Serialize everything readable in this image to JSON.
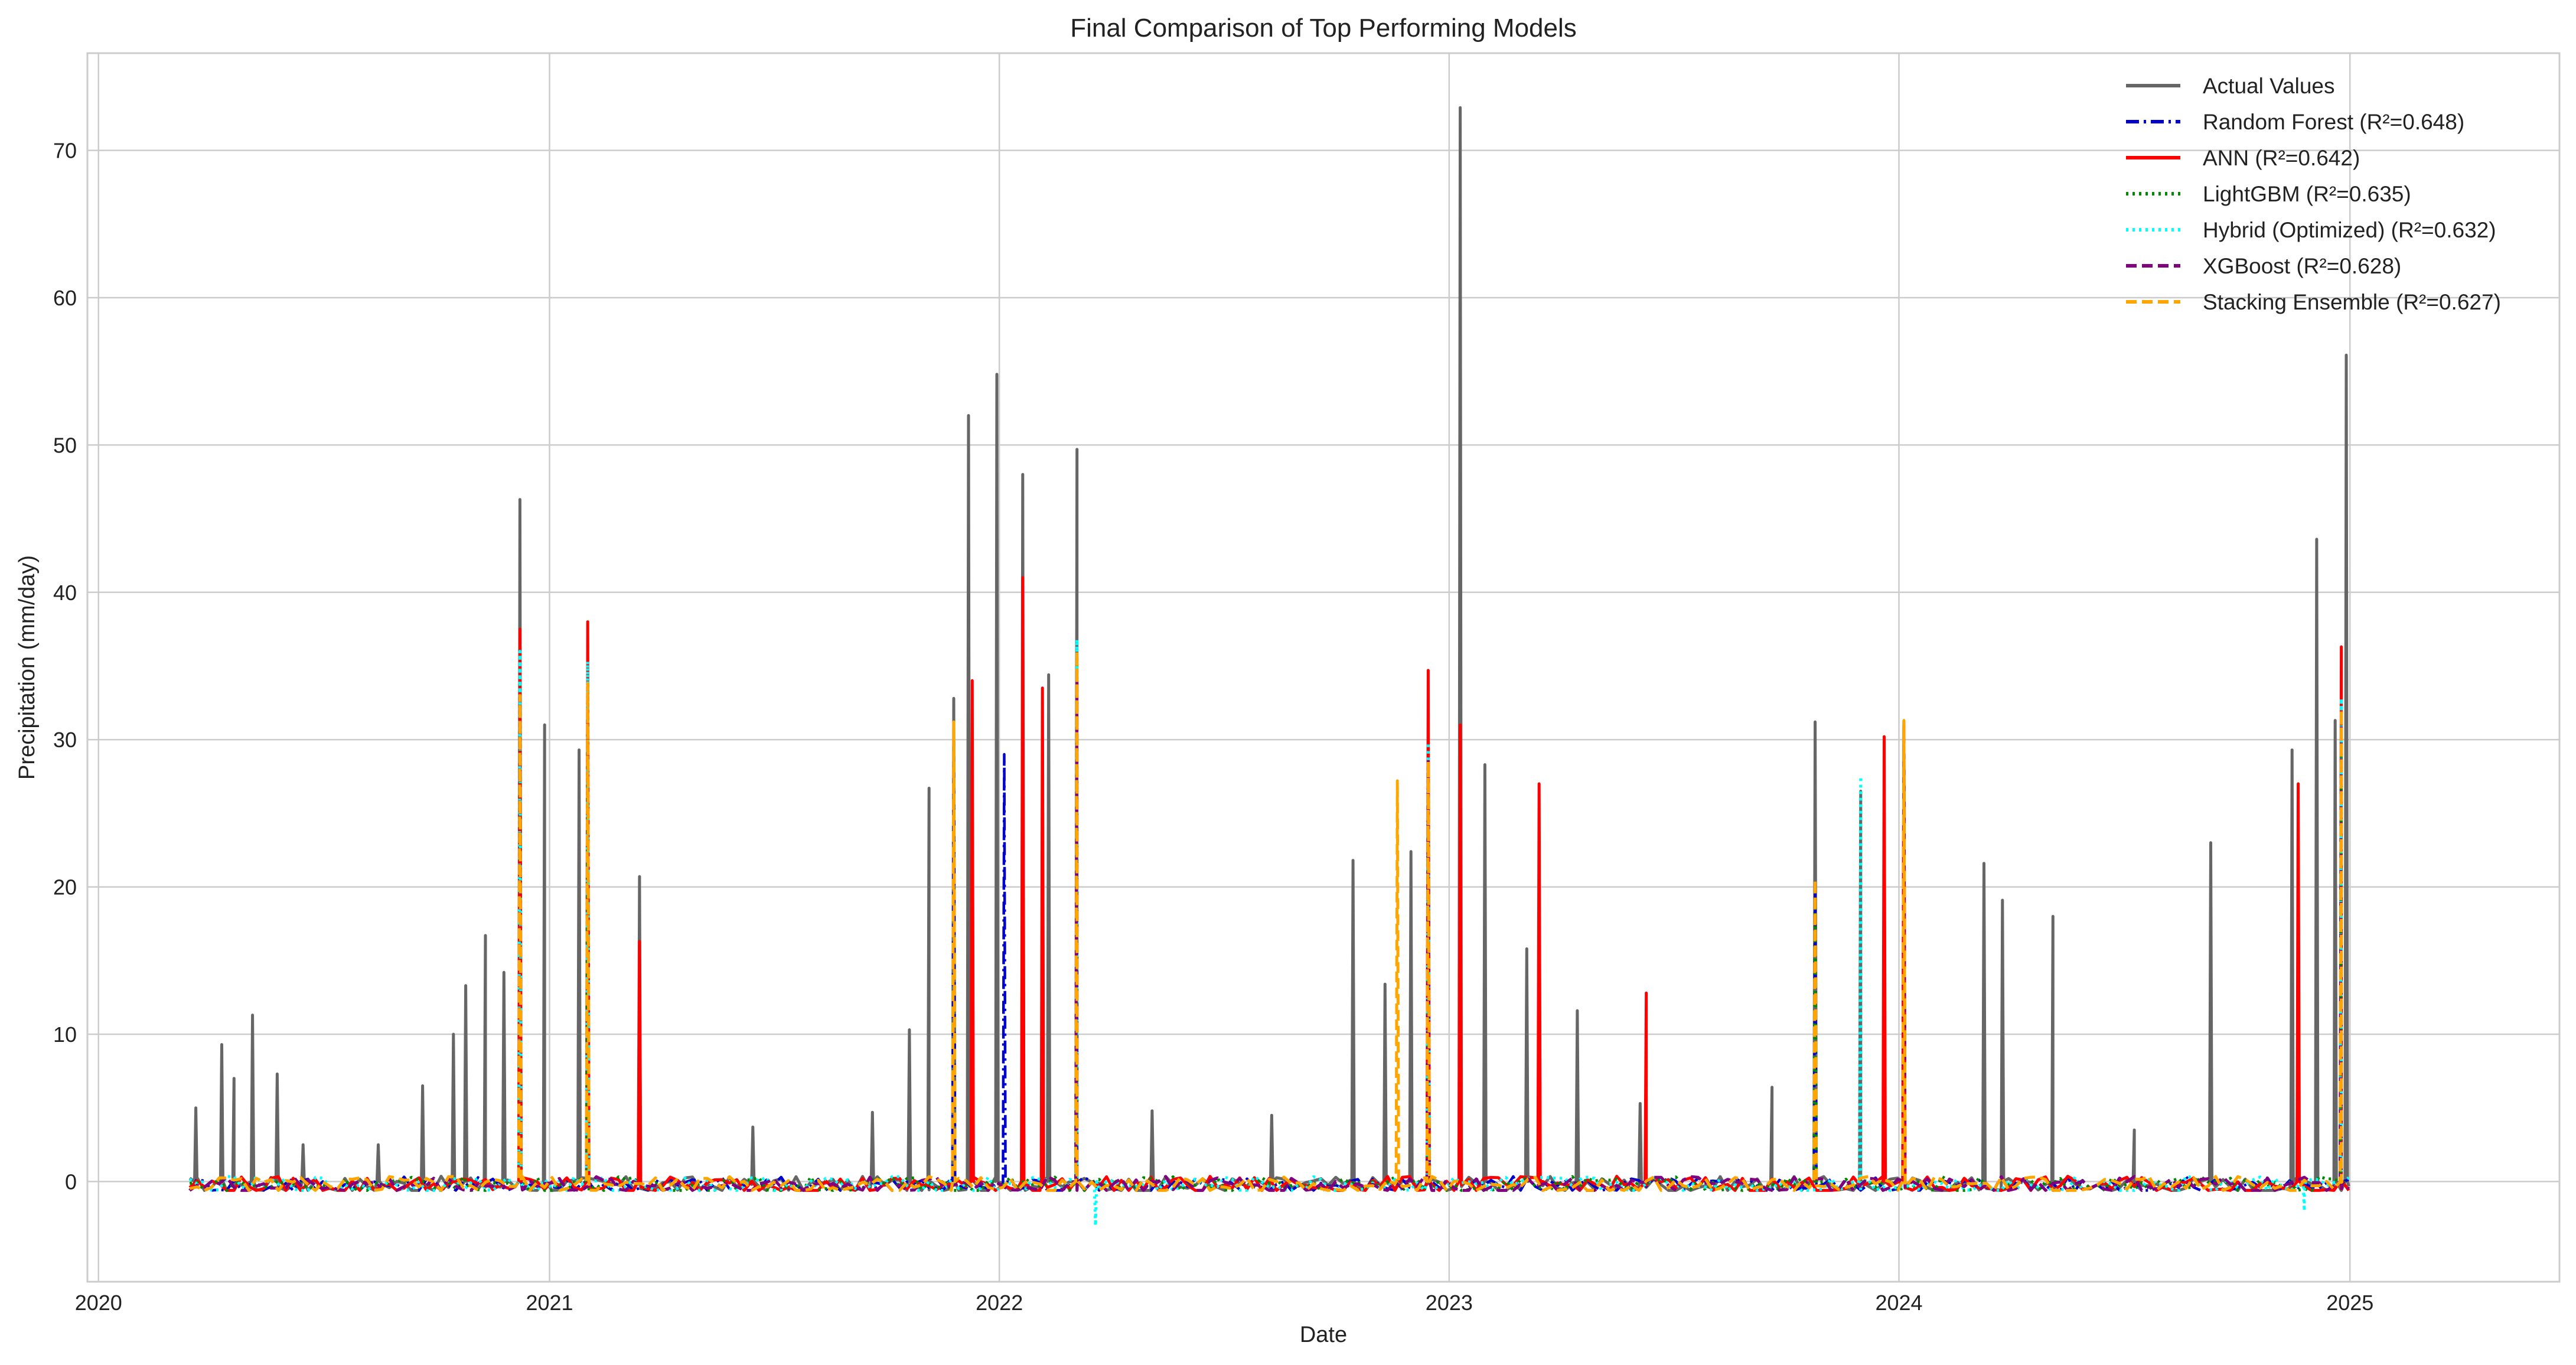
{
  "chart_data": {
    "type": "line",
    "title": "Final Comparison of Top Performing Models",
    "xlabel": "Date",
    "ylabel": "Precipitation (mm/day)",
    "x_ticks": [
      "2020",
      "2021",
      "2022",
      "2023",
      "2024",
      "2025"
    ],
    "y_ticks": [
      0,
      10,
      20,
      30,
      40,
      50,
      60,
      70
    ],
    "xlim": [
      "2019-12-23",
      "2025-06-20"
    ],
    "ylim": [
      -6.8,
      76.6
    ],
    "grid": true,
    "legend_position": "top-right",
    "series": [
      {
        "name": "Actual Values",
        "color": "#666666",
        "style": "solid",
        "points": [
          [
            "2020-03-20",
            5
          ],
          [
            "2020-04-10",
            9.3
          ],
          [
            "2020-04-20",
            7
          ],
          [
            "2020-05-05",
            11.3
          ],
          [
            "2020-05-25",
            7.3
          ],
          [
            "2020-06-15",
            2.5
          ],
          [
            "2020-08-15",
            2.5
          ],
          [
            "2020-09-20",
            6.5
          ],
          [
            "2020-10-15",
            10
          ],
          [
            "2020-10-25",
            13.3
          ],
          [
            "2020-11-10",
            16.7
          ],
          [
            "2020-11-25",
            14.2
          ],
          [
            "2020-12-08",
            46.3
          ],
          [
            "2020-12-28",
            31
          ],
          [
            "2021-01-25",
            29.3
          ],
          [
            "2021-03-15",
            20.7
          ],
          [
            "2021-06-15",
            3.7
          ],
          [
            "2021-09-20",
            4.7
          ],
          [
            "2021-10-20",
            10.3
          ],
          [
            "2021-11-05",
            26.7
          ],
          [
            "2021-11-25",
            32.8
          ],
          [
            "2021-12-07",
            52
          ],
          [
            "2021-12-30",
            54.8
          ],
          [
            "2022-01-20",
            48
          ],
          [
            "2022-02-10",
            34.4
          ],
          [
            "2022-03-05",
            49.7
          ],
          [
            "2022-05-05",
            4.8
          ],
          [
            "2022-08-10",
            4.5
          ],
          [
            "2022-10-15",
            21.8
          ],
          [
            "2022-11-10",
            13.4
          ],
          [
            "2022-12-01",
            22.4
          ],
          [
            "2023-01-10",
            72.9
          ],
          [
            "2023-01-30",
            28.3
          ],
          [
            "2023-03-05",
            15.8
          ],
          [
            "2023-04-15",
            11.6
          ],
          [
            "2023-06-05",
            5.3
          ],
          [
            "2023-09-20",
            6.4
          ],
          [
            "2023-10-25",
            31.2
          ],
          [
            "2023-12-01",
            26.5
          ],
          [
            "2024-01-05",
            31.2
          ],
          [
            "2024-03-10",
            21.6
          ],
          [
            "2024-03-25",
            19.1
          ],
          [
            "2024-05-05",
            18
          ],
          [
            "2024-07-10",
            3.5
          ],
          [
            "2024-09-10",
            23
          ],
          [
            "2024-11-15",
            29.3
          ],
          [
            "2024-12-05",
            43.6
          ],
          [
            "2024-12-20",
            31.3
          ],
          [
            "2024-12-29",
            56.1
          ]
        ]
      },
      {
        "name": "Random Forest (R²=0.648)",
        "color": "#0000cc",
        "style": "dashdot",
        "points": [
          [
            "2020-12-08",
            36
          ],
          [
            "2021-02-01",
            34
          ],
          [
            "2021-11-25",
            30
          ],
          [
            "2022-01-05",
            29
          ],
          [
            "2022-03-05",
            35
          ],
          [
            "2022-12-15",
            29
          ],
          [
            "2023-01-10",
            27
          ],
          [
            "2023-10-25",
            20
          ],
          [
            "2024-01-05",
            30
          ],
          [
            "2024-12-25",
            33
          ]
        ]
      },
      {
        "name": "ANN (R²=0.642)",
        "color": "#ff0000",
        "style": "solid",
        "points": [
          [
            "2020-12-08",
            37.5
          ],
          [
            "2021-02-01",
            38
          ],
          [
            "2021-03-15",
            16.3
          ],
          [
            "2021-12-10",
            34
          ],
          [
            "2022-01-20",
            41
          ],
          [
            "2022-02-05",
            33.5
          ],
          [
            "2022-12-15",
            34.7
          ],
          [
            "2023-01-10",
            31
          ],
          [
            "2023-03-15",
            27
          ],
          [
            "2023-06-10",
            12.8
          ],
          [
            "2023-12-20",
            30.2
          ],
          [
            "2024-01-05",
            31
          ],
          [
            "2024-11-20",
            27
          ],
          [
            "2024-12-25",
            36.3
          ]
        ]
      },
      {
        "name": "LightGBM (R²=0.635)",
        "color": "#008800",
        "style": "dotted",
        "points": [
          [
            "2020-12-08",
            34
          ],
          [
            "2021-02-01",
            33
          ],
          [
            "2022-03-05",
            35.5
          ],
          [
            "2022-12-15",
            28
          ],
          [
            "2023-10-25",
            19
          ],
          [
            "2024-12-25",
            30
          ]
        ]
      },
      {
        "name": "Hybrid (Optimized) (R²=0.632)",
        "color": "#00ffff",
        "style": "dotted",
        "points": [
          [
            "2020-12-08",
            36
          ],
          [
            "2021-02-01",
            35.3
          ],
          [
            "2022-03-05",
            36.8
          ],
          [
            "2022-03-20",
            -3
          ],
          [
            "2022-12-15",
            29.8
          ],
          [
            "2023-12-01",
            27.5
          ],
          [
            "2024-12-25",
            32.8
          ],
          [
            "2024-11-25",
            -2
          ]
        ]
      },
      {
        "name": "XGBoost (R²=0.628)",
        "color": "#800080",
        "style": "dashed",
        "points": [
          [
            "2020-12-08",
            33
          ],
          [
            "2022-03-05",
            34
          ],
          [
            "2022-12-15",
            28.5
          ],
          [
            "2024-01-05",
            29
          ],
          [
            "2024-12-25",
            31
          ]
        ]
      },
      {
        "name": "Stacking Ensemble (R²=0.627)",
        "color": "#ffa500",
        "style": "dashed",
        "points": [
          [
            "2020-12-08",
            33
          ],
          [
            "2021-02-01",
            33.8
          ],
          [
            "2021-11-25",
            31.2
          ],
          [
            "2022-03-05",
            36
          ],
          [
            "2022-11-20",
            27.2
          ],
          [
            "2022-12-15",
            28.5
          ],
          [
            "2023-10-25",
            20.5
          ],
          [
            "2024-01-05",
            31.3
          ],
          [
            "2024-12-25",
            32
          ]
        ]
      }
    ]
  }
}
